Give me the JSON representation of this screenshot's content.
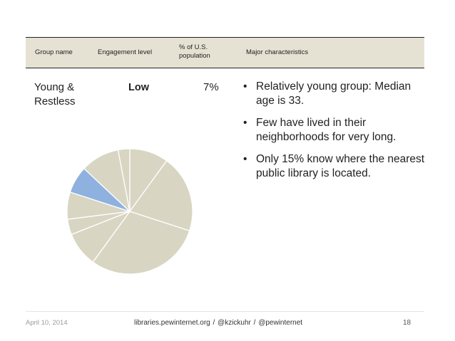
{
  "table": {
    "headers": {
      "group_name": "Group name",
      "engagement_level": "Engagement level",
      "population": "% of U.S. population",
      "characteristics": "Major characteristics"
    },
    "row": {
      "group_name": "Young & Restless",
      "engagement": "Low",
      "population": "7%",
      "characteristics": [
        "Relatively young group: Median age is 33.",
        "Few have lived in their neighborhoods for very long.",
        "Only 15% know where the nearest public library is located."
      ]
    }
  },
  "bullet_glyph": "•",
  "chart_data": {
    "type": "pie",
    "values": [
      10,
      20,
      30,
      9,
      4,
      7,
      7,
      10,
      3
    ],
    "highlight_index": 6,
    "colors": {
      "default": "#d8d5c3",
      "highlight": "#8eb1e0",
      "stroke": "#ffffff"
    }
  },
  "footer": {
    "date": "April 10, 2014",
    "center": "libraries.pewinternet.org   /   @kzickuhr   /   @pewinternet",
    "page": "18"
  }
}
